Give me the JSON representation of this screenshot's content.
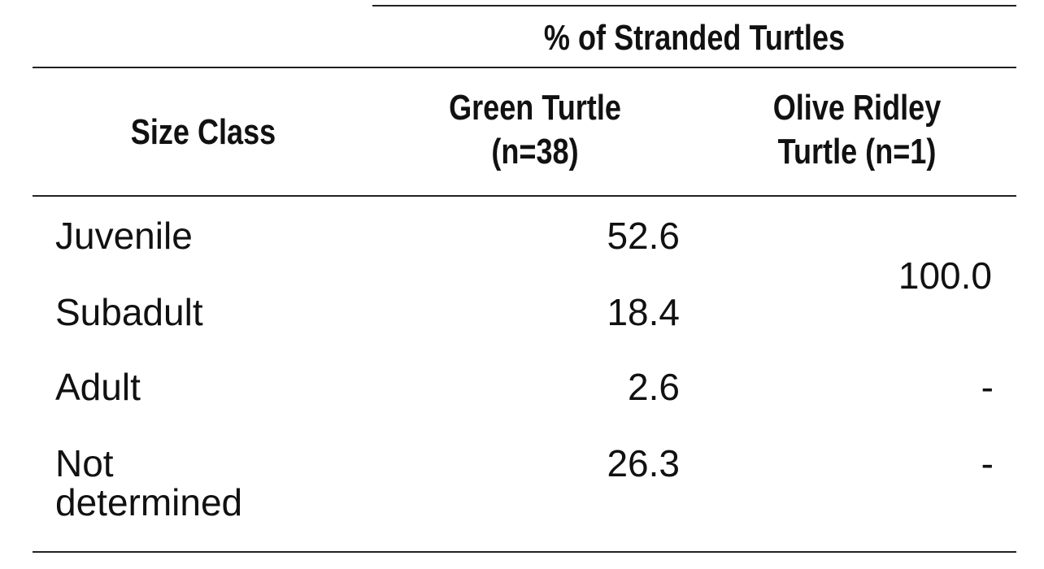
{
  "table": {
    "group_header": "% of Stranded Turtles",
    "columns": {
      "size_class": "Size Class",
      "green": {
        "line1": "Green Turtle",
        "line2": "(n=38)"
      },
      "olive": {
        "line1": "Olive Ridley",
        "line2": "Turtle (n=1)"
      }
    },
    "rows": [
      {
        "label": "Juvenile",
        "green": "52.6"
      },
      {
        "label": "Subadult",
        "green": "18.4"
      },
      {
        "label": "Adult",
        "green": "2.6",
        "olive": "-"
      },
      {
        "label_line1": "Not",
        "label_line2": "determined",
        "green": "26.3",
        "olive": "-"
      }
    ],
    "olive_merged": "100.0"
  }
}
